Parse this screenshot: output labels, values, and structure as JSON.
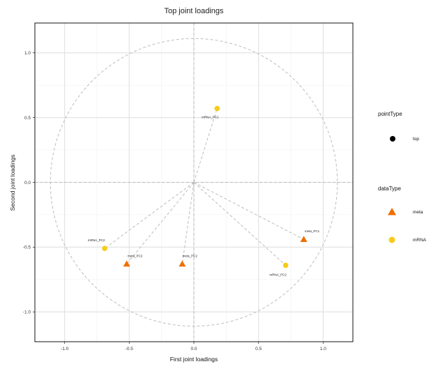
{
  "chart_data": {
    "type": "scatter",
    "title": "Top joint loadings",
    "xlabel": "First joint loadings",
    "ylabel": "Second joint loadings",
    "xlim": [
      -1.23,
      1.23
    ],
    "ylim": [
      -1.23,
      1.23
    ],
    "xticks": [
      -1.0,
      -0.5,
      0.0,
      0.5,
      1.0
    ],
    "yticks": [
      -1.0,
      -0.5,
      0.0,
      0.5,
      1.0
    ],
    "xtick_labels": [
      "-1.0",
      "-0.5",
      "0.0",
      "0.5",
      "1.0"
    ],
    "ytick_labels": [
      "-1.0",
      "-0.5",
      "0.0",
      "0.5",
      "1.0"
    ],
    "grid": true,
    "circle_radius": 1.11,
    "points": [
      {
        "label": "mRNA_PC1",
        "x": 0.18,
        "y": 0.57,
        "dataType": "mRNA",
        "pointType": "top"
      },
      {
        "label": "mRNA_PC2",
        "x": -0.69,
        "y": -0.51,
        "dataType": "mRNA",
        "pointType": "top"
      },
      {
        "label": "meta_PC2",
        "x": -0.52,
        "y": -0.63,
        "dataType": "meta",
        "pointType": "top"
      },
      {
        "label": "meta_PC2",
        "x": -0.09,
        "y": -0.63,
        "dataType": "meta",
        "pointType": "top"
      },
      {
        "label": "meta_PC1",
        "x": 0.85,
        "y": -0.44,
        "dataType": "meta",
        "pointType": "top"
      },
      {
        "label": "mRNA_PC2",
        "x": 0.71,
        "y": -0.64,
        "dataType": "mRNA",
        "pointType": "top"
      }
    ],
    "legend": {
      "placement": "right",
      "pointType": {
        "title": "pointType",
        "items": [
          {
            "label": "top"
          }
        ]
      },
      "dataType": {
        "title": "dataType",
        "items": [
          {
            "label": "meta",
            "color": "#f06e00",
            "shape": "triangle"
          },
          {
            "label": "mRNA",
            "color": "#f5cc1a",
            "shape": "circle"
          }
        ]
      }
    },
    "colors": {
      "meta": "#f06e00",
      "mRNA": "#f5cc1a",
      "top": "#000000"
    }
  }
}
